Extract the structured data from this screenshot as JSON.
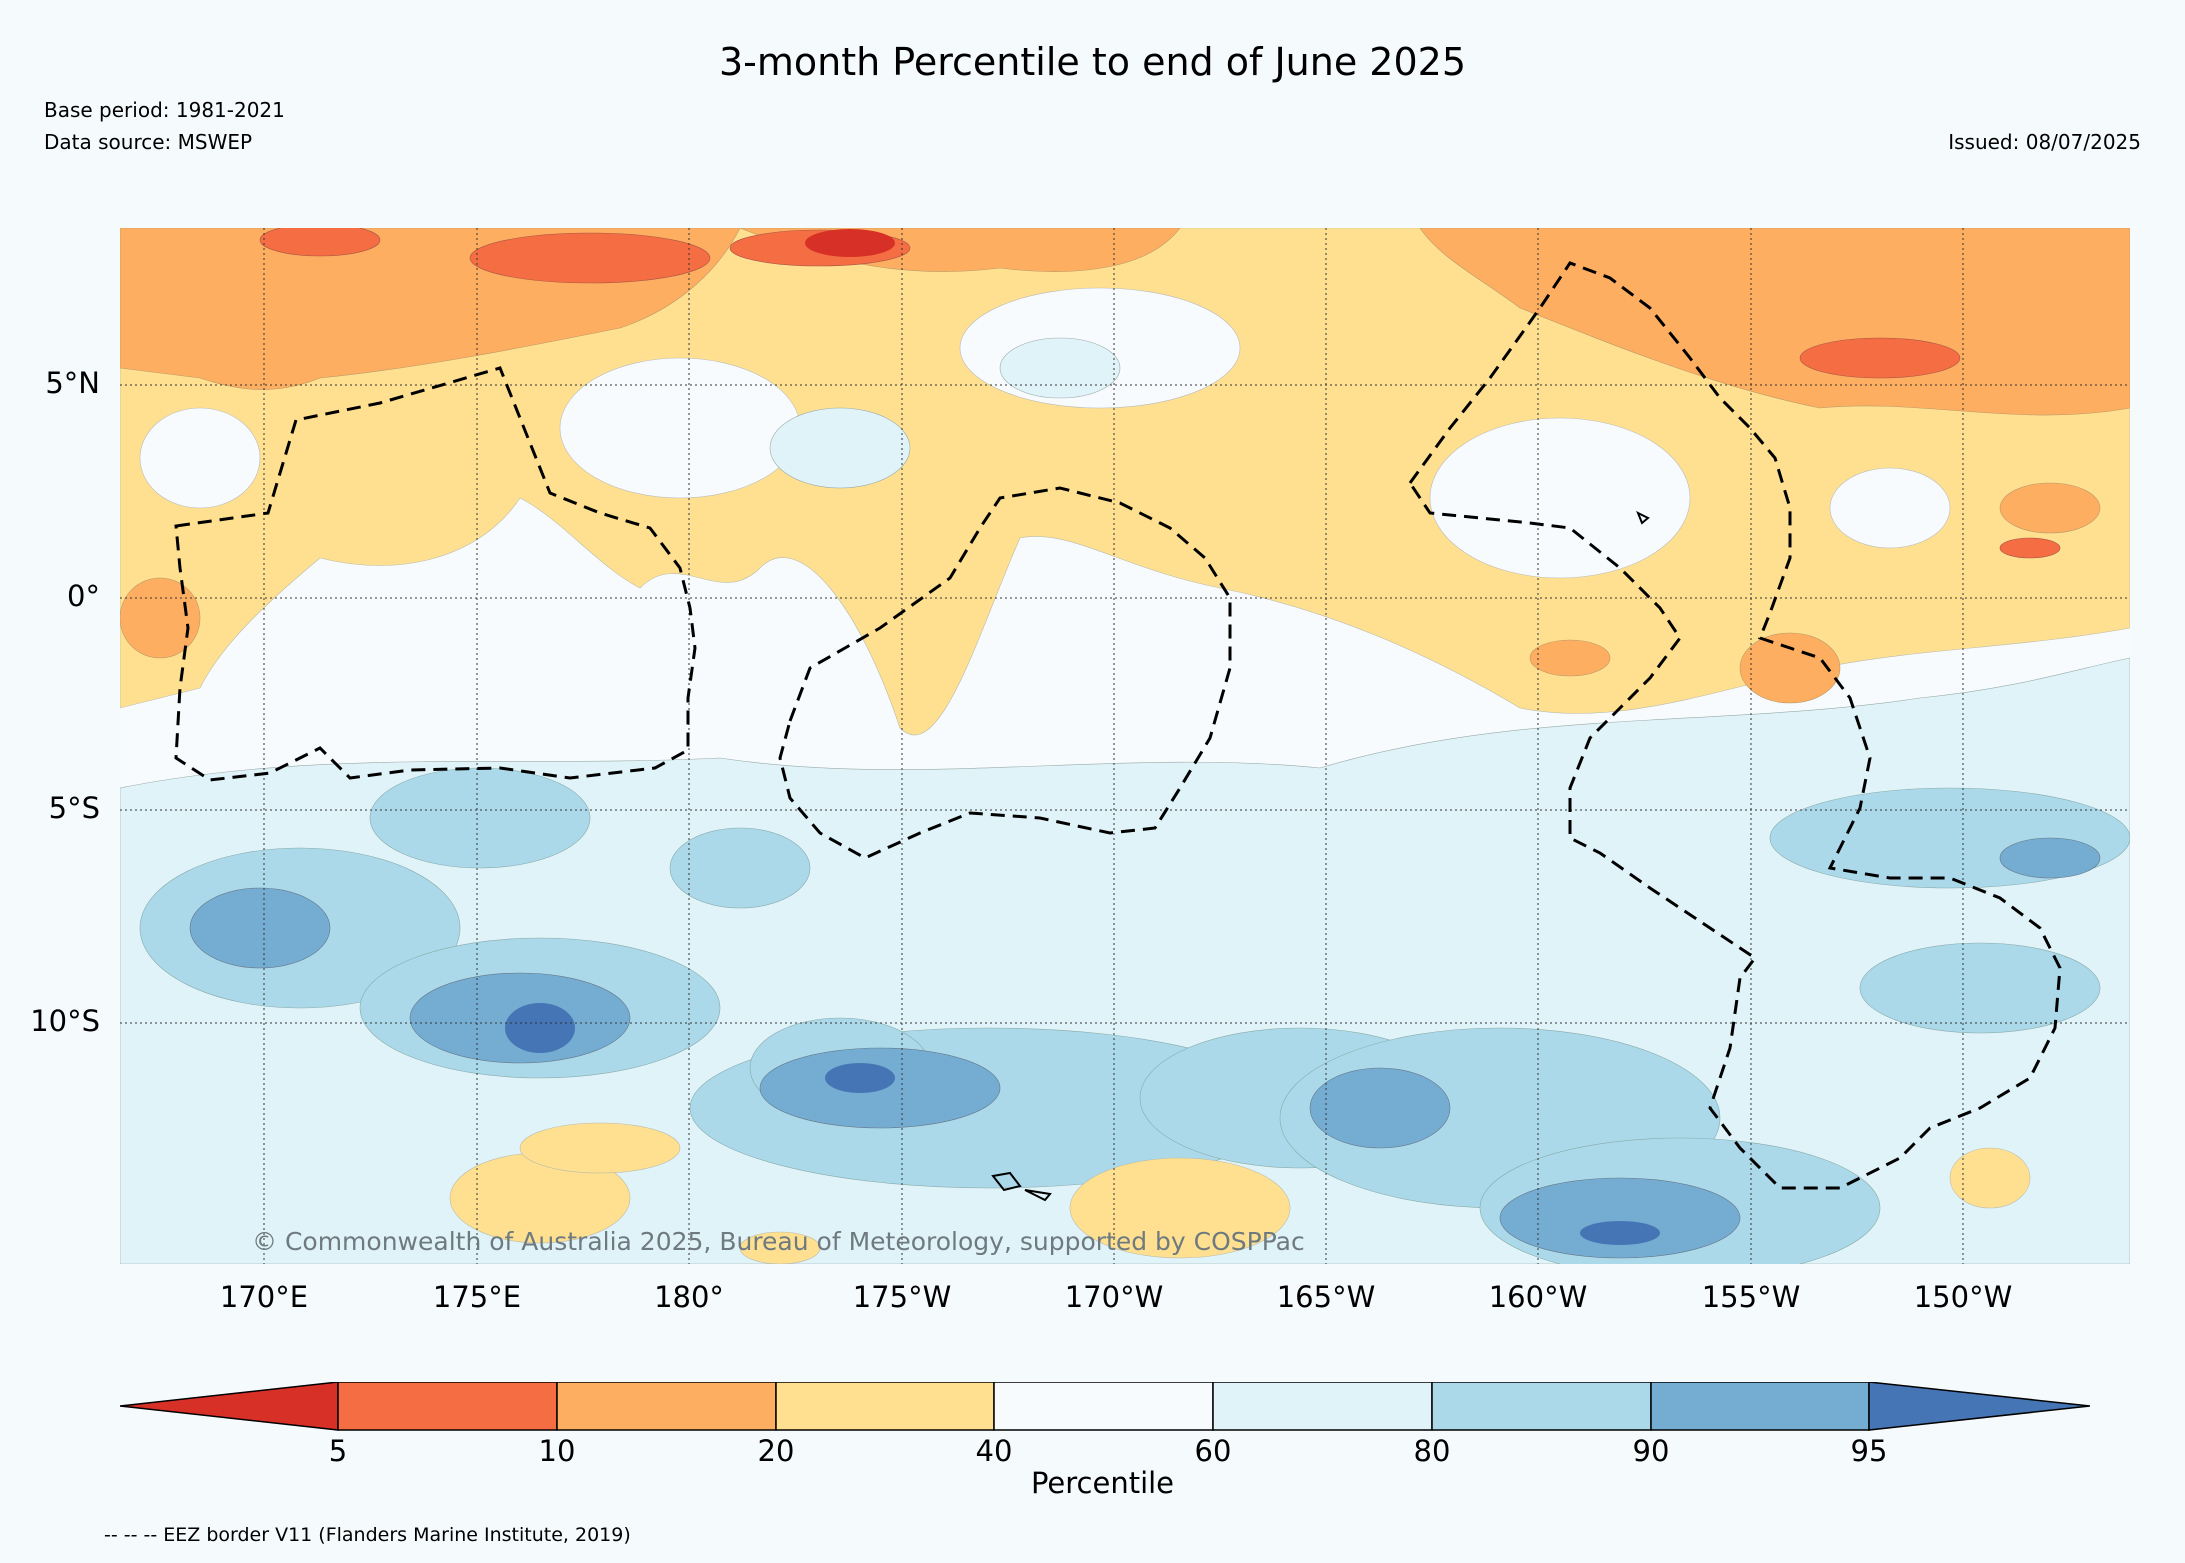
{
  "title": "3-month Percentile to end of June 2025",
  "base_period": "Base period: 1981-2021",
  "data_source": "Data source: MSWEP",
  "issued": "Issued: 08/07/2025",
  "copyright": "© Commonwealth of Australia 2025, Bureau of Meteorology, supported by COSPPac",
  "lat_labels": [
    "5°N",
    "0°",
    "5°S",
    "10°S"
  ],
  "lon_labels": [
    "170°E",
    "175°E",
    "180°",
    "175°W",
    "170°W",
    "165°W",
    "160°W",
    "155°W",
    "150°W"
  ],
  "colorbar": {
    "label": "Percentile",
    "ticks": [
      "5",
      "10",
      "20",
      "40",
      "60",
      "80",
      "90",
      "95"
    ],
    "colors": {
      "below_5": "#d73027",
      "p5_10": "#f46d43",
      "p10_20": "#fdae61",
      "p20_40": "#fee090",
      "p40_60": "#f7fbfd",
      "p60_80": "#e0f3f8",
      "p80_90": "#abd9e9",
      "p90_95": "#74add1",
      "above_95": "#4575b4"
    }
  },
  "footnote": "-- -- -- EEZ border V11 (Flanders Marine Institute, 2019)"
}
